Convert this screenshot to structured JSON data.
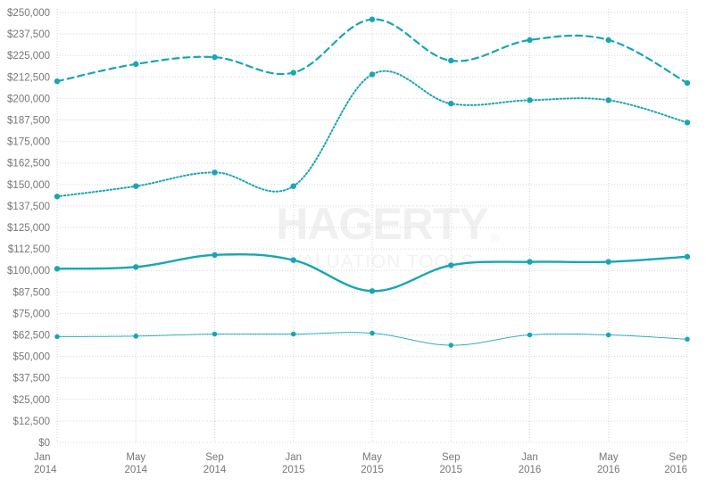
{
  "chart_data": {
    "type": "line",
    "x": [
      "Jan 2014",
      "May 2014",
      "Sep 2014",
      "Jan 2015",
      "May 2015",
      "Sep 2015",
      "Jan 2016",
      "May 2016",
      "Sep 2016"
    ],
    "x_tick_labels": [
      {
        "line1": "Jan",
        "line2": "2014"
      },
      {
        "line1": "May",
        "line2": "2014"
      },
      {
        "line1": "Sep",
        "line2": "2014"
      },
      {
        "line1": "Jan",
        "line2": "2015"
      },
      {
        "line1": "May",
        "line2": "2015"
      },
      {
        "line1": "Sep",
        "line2": "2015"
      },
      {
        "line1": "Jan",
        "line2": "2016"
      },
      {
        "line1": "May",
        "line2": "2016"
      },
      {
        "line1": "Sep",
        "line2": "2016"
      }
    ],
    "y_ticks": [
      0,
      12500,
      25000,
      37500,
      50000,
      62500,
      75000,
      87500,
      100000,
      112500,
      125000,
      137500,
      150000,
      162500,
      175000,
      187500,
      200000,
      212500,
      225000,
      237500,
      250000
    ],
    "y_tick_labels": [
      "$0",
      "$12,500",
      "$25,000",
      "$37,500",
      "$50,000",
      "$62,500",
      "$75,000",
      "$87,500",
      "$100,000",
      "$112,500",
      "$125,000",
      "$137,500",
      "$150,000",
      "$162,500",
      "$175,000",
      "$187,500",
      "$200,000",
      "$212,500",
      "$225,000",
      "$237,500",
      "$250,000"
    ],
    "ylim": [
      0,
      250000
    ],
    "grid": true,
    "series": [
      {
        "style": "dashed",
        "values": [
          210000,
          220000,
          224000,
          215000,
          246000,
          222000,
          234000,
          234000,
          209000
        ]
      },
      {
        "style": "dotted",
        "values": [
          143000,
          149000,
          157000,
          149000,
          214000,
          197000,
          199000,
          199000,
          186000
        ]
      },
      {
        "style": "solid-thick",
        "values": [
          101000,
          102000,
          109000,
          106000,
          88000,
          103000,
          105000,
          105000,
          108000
        ]
      },
      {
        "style": "solid-thin",
        "values": [
          61500,
          61800,
          63000,
          63000,
          63500,
          56500,
          62500,
          62500,
          60000
        ]
      }
    ],
    "colors": {
      "line": "#17a6b4",
      "marker": "#17a6b4",
      "grid": "#d6d6d6",
      "tick_text": "#777777"
    }
  },
  "watermark": {
    "main": "HAGERTY",
    "sub": "VALUATION TOOLS",
    "registered": "®"
  }
}
